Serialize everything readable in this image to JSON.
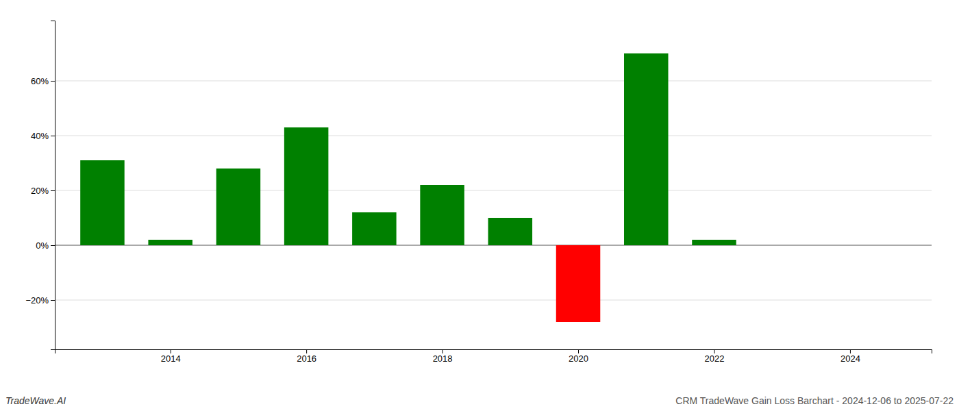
{
  "chart_data": {
    "type": "bar",
    "title": "CRM TradeWave Gain Loss Barchart - 2024-12-06 to 2025-07-22",
    "annotations": [
      "TradeWave.AI"
    ],
    "x": [
      2013,
      2014,
      2015,
      2016,
      2017,
      2018,
      2019,
      2020,
      2021,
      2022,
      2023
    ],
    "values": [
      0.31,
      0.02,
      0.28,
      0.43,
      0.12,
      0.22,
      0.1,
      -0.28,
      0.7,
      0.02,
      null
    ],
    "colors": [
      "#008000",
      "#008000",
      "#008000",
      "#008000",
      "#008000",
      "#008000",
      "#008000",
      "#ff0000",
      "#008000",
      "#008000",
      null
    ],
    "xlim": [
      2012.3,
      2025.2
    ],
    "xticks": [
      2014,
      2016,
      2018,
      2020,
      2022,
      2024
    ],
    "ylim": [
      -0.38,
      0.82
    ],
    "yticks": [
      {
        "value": -0.2,
        "label": "−20%"
      },
      {
        "value": 0,
        "label": "0%"
      },
      {
        "value": 0.2,
        "label": "20%"
      },
      {
        "value": 0.4,
        "label": "40%"
      },
      {
        "value": 0.6,
        "label": "60%"
      }
    ],
    "grid": true
  }
}
